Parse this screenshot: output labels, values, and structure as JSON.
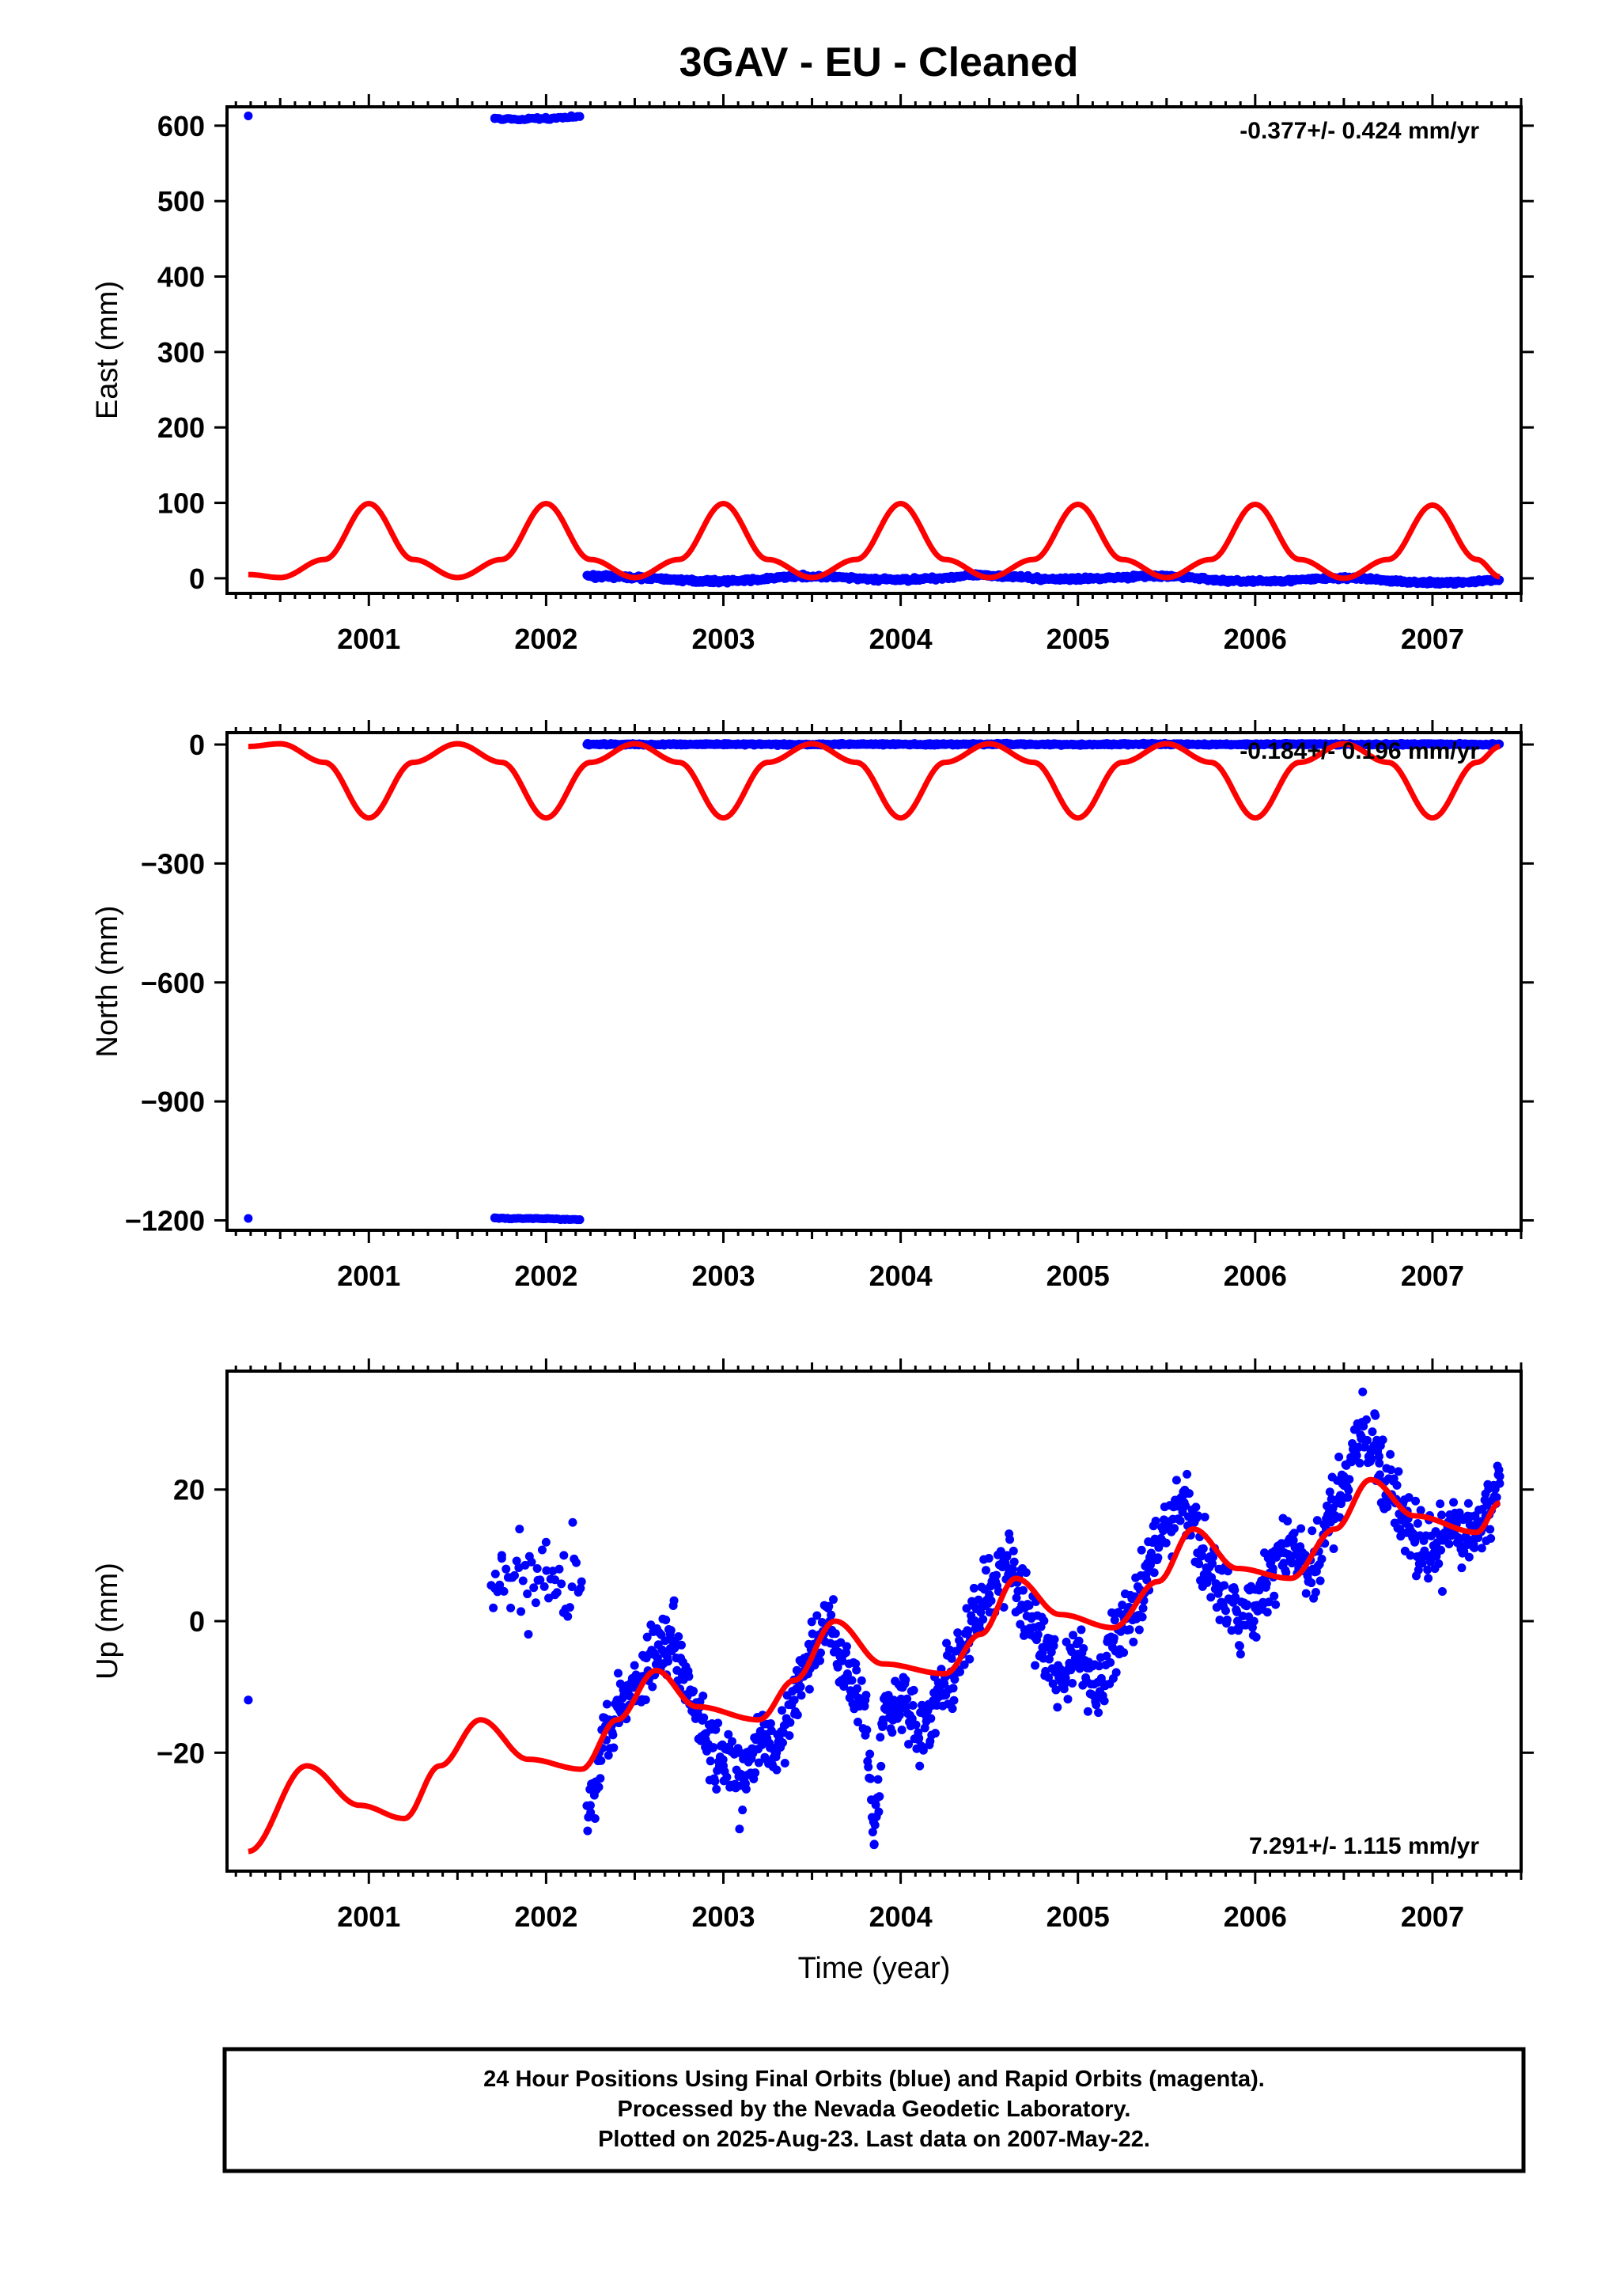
{
  "title": "3GAV  - EU - Cleaned",
  "footer": {
    "line1": "24 Hour Positions Using Final Orbits (blue) and Rapid Orbits (magenta).",
    "line2": "Processed by the Nevada Geodetic Laboratory.",
    "line3": "Plotted on 2025-Aug-23. Last data on 2007-May-22."
  },
  "colors": {
    "data": "#0000ff",
    "model": "#ff0000",
    "frame": "#000000"
  },
  "chart_data": [
    {
      "type": "scatter",
      "panel": "east",
      "ylabel": "East (mm)",
      "xlabel": "",
      "xlim": [
        2000.2,
        2007.5
      ],
      "ylim": [
        -20,
        625
      ],
      "yticks": [
        0,
        100,
        200,
        300,
        400,
        500,
        600
      ],
      "xticks": [
        2001,
        2002,
        2003,
        2004,
        2005,
        2006,
        2007
      ],
      "rate_label": "-0.377+/- 0.424 mm/yr",
      "rate_position": "top-right",
      "series": [
        {
          "values": [
            [
              2000.32,
              613
            ],
            [
              2001.71,
              610
            ],
            [
              2001.75,
              608
            ],
            [
              2001.8,
              609
            ],
            [
              2001.85,
              608
            ],
            [
              2001.9,
              609
            ],
            [
              2001.95,
              610
            ],
            [
              2002.0,
              609
            ],
            [
              2002.05,
              610
            ],
            [
              2002.1,
              611
            ],
            [
              2002.15,
              611
            ],
            [
              2002.19,
              612
            ]
          ]
        },
        {
          "values": [
            [
              2002.23,
              3
            ],
            [
              2002.4,
              2
            ],
            [
              2002.6,
              0
            ],
            [
              2002.8,
              -3
            ],
            [
              2003.0,
              -4
            ],
            [
              2003.2,
              -2
            ],
            [
              2003.4,
              3
            ],
            [
              2003.6,
              2
            ],
            [
              2003.8,
              -1
            ],
            [
              2004.0,
              -2
            ],
            [
              2004.2,
              0
            ],
            [
              2004.4,
              4
            ],
            [
              2004.6,
              3
            ],
            [
              2004.8,
              -1
            ],
            [
              2005.0,
              -1
            ],
            [
              2005.2,
              1
            ],
            [
              2005.4,
              3
            ],
            [
              2005.6,
              2
            ],
            [
              2005.8,
              -3
            ],
            [
              2006.0,
              -4
            ],
            [
              2006.2,
              -3
            ],
            [
              2006.4,
              0
            ],
            [
              2006.6,
              0
            ],
            [
              2006.8,
              -4
            ],
            [
              2007.0,
              -6
            ],
            [
              2007.2,
              -5
            ],
            [
              2007.38,
              -2
            ]
          ]
        },
        {
          "values": [
            [
              2000.32,
              5
            ],
            [
              2000.5,
              1
            ],
            [
              2000.75,
              25
            ],
            [
              2001.0,
              99
            ],
            [
              2001.25,
              25
            ],
            [
              2001.5,
              1
            ],
            [
              2001.75,
              25
            ],
            [
              2002.0,
              99
            ],
            [
              2002.25,
              25
            ],
            [
              2002.5,
              1
            ],
            [
              2002.75,
              25
            ],
            [
              2003.0,
              99
            ],
            [
              2003.25,
              25
            ],
            [
              2003.5,
              1
            ],
            [
              2003.75,
              25
            ],
            [
              2004.0,
              99
            ],
            [
              2004.25,
              25
            ],
            [
              2004.5,
              1
            ],
            [
              2004.75,
              25
            ],
            [
              2005.0,
              98
            ],
            [
              2005.25,
              25
            ],
            [
              2005.5,
              1
            ],
            [
              2005.75,
              25
            ],
            [
              2006.0,
              98
            ],
            [
              2006.25,
              25
            ],
            [
              2006.5,
              0
            ],
            [
              2006.75,
              25
            ],
            [
              2007.0,
              97
            ],
            [
              2007.25,
              25
            ],
            [
              2007.38,
              2
            ]
          ]
        }
      ]
    },
    {
      "type": "scatter",
      "panel": "north",
      "ylabel": "North (mm)",
      "xlabel": "",
      "xlim": [
        2000.2,
        2007.5
      ],
      "ylim": [
        -1225,
        30
      ],
      "yticks": [
        0,
        -300,
        -600,
        -900,
        -1200
      ],
      "ytick_labels": [
        "0",
        "−300",
        "−600",
        "−900",
        "−1200"
      ],
      "xticks": [
        2001,
        2002,
        2003,
        2004,
        2005,
        2006,
        2007
      ],
      "rate_label": "-0.184+/- 0.196 mm/yr",
      "rate_position": "top-right",
      "series": [
        {
          "values": [
            [
              2000.32,
              -1195
            ],
            [
              2001.71,
              -1194
            ],
            [
              2001.8,
              -1196
            ],
            [
              2001.9,
              -1195
            ],
            [
              2002.0,
              -1196
            ],
            [
              2002.1,
              -1197
            ],
            [
              2002.19,
              -1198
            ]
          ]
        },
        {
          "values": [
            [
              2002.23,
              1
            ],
            [
              2002.6,
              0
            ],
            [
              2003.0,
              1
            ],
            [
              2003.4,
              0
            ],
            [
              2003.8,
              1
            ],
            [
              2004.2,
              0
            ],
            [
              2004.6,
              1
            ],
            [
              2005.0,
              0
            ],
            [
              2005.4,
              1
            ],
            [
              2005.8,
              0
            ],
            [
              2006.2,
              1
            ],
            [
              2006.6,
              0
            ],
            [
              2007.0,
              1
            ],
            [
              2007.38,
              0
            ]
          ]
        },
        {
          "values": [
            [
              2000.32,
              -5
            ],
            [
              2000.5,
              2
            ],
            [
              2000.75,
              -45
            ],
            [
              2001.0,
              -185
            ],
            [
              2001.25,
              -45
            ],
            [
              2001.5,
              2
            ],
            [
              2001.75,
              -45
            ],
            [
              2002.0,
              -185
            ],
            [
              2002.25,
              -45
            ],
            [
              2002.5,
              2
            ],
            [
              2002.75,
              -45
            ],
            [
              2003.0,
              -185
            ],
            [
              2003.25,
              -45
            ],
            [
              2003.5,
              2
            ],
            [
              2003.75,
              -45
            ],
            [
              2004.0,
              -185
            ],
            [
              2004.25,
              -45
            ],
            [
              2004.5,
              2
            ],
            [
              2004.75,
              -45
            ],
            [
              2005.0,
              -185
            ],
            [
              2005.25,
              -45
            ],
            [
              2005.5,
              2
            ],
            [
              2005.75,
              -45
            ],
            [
              2006.0,
              -185
            ],
            [
              2006.25,
              -45
            ],
            [
              2006.5,
              2
            ],
            [
              2006.75,
              -45
            ],
            [
              2007.0,
              -185
            ],
            [
              2007.25,
              -45
            ],
            [
              2007.38,
              -5
            ]
          ]
        }
      ]
    },
    {
      "type": "scatter",
      "panel": "up",
      "ylabel": "Up (mm)",
      "xlabel": "Time (year)",
      "xlim": [
        2000.2,
        2007.5
      ],
      "ylim": [
        -38,
        38
      ],
      "yticks": [
        -20,
        0,
        20
      ],
      "ytick_labels": [
        "−20",
        "0",
        "20"
      ],
      "xticks": [
        2001,
        2002,
        2003,
        2004,
        2005,
        2006,
        2007
      ],
      "rate_label": "7.291+/- 1.115 mm/yr",
      "rate_position": "bottom-right",
      "series": [
        {
          "values": [
            [
              2000.32,
              -12
            ],
            [
              2001.71,
              5
            ],
            [
              2001.75,
              10
            ],
            [
              2001.8,
              2
            ],
            [
              2001.85,
              14
            ],
            [
              2001.9,
              -2
            ],
            [
              2001.95,
              8
            ],
            [
              2002.0,
              12
            ],
            [
              2002.05,
              4
            ],
            [
              2002.1,
              10
            ],
            [
              2002.15,
              15
            ],
            [
              2002.2,
              6
            ],
            [
              2002.25,
              -28
            ],
            [
              2002.3,
              -20
            ],
            [
              2002.4,
              -12
            ],
            [
              2002.5,
              -10
            ],
            [
              2002.6,
              -5
            ],
            [
              2002.7,
              -2
            ],
            [
              2002.8,
              -8
            ],
            [
              2002.9,
              -18
            ],
            [
              2003.0,
              -22
            ],
            [
              2003.1,
              -25
            ],
            [
              2003.2,
              -18
            ],
            [
              2003.3,
              -20
            ],
            [
              2003.4,
              -12
            ],
            [
              2003.5,
              -5
            ],
            [
              2003.6,
              0
            ],
            [
              2003.7,
              -8
            ],
            [
              2003.8,
              -12
            ],
            [
              2003.85,
              -34
            ],
            [
              2003.9,
              -15
            ],
            [
              2004.0,
              -10
            ],
            [
              2004.1,
              -18
            ],
            [
              2004.2,
              -12
            ],
            [
              2004.3,
              -8
            ],
            [
              2004.4,
              0
            ],
            [
              2004.5,
              4
            ],
            [
              2004.6,
              10
            ],
            [
              2004.7,
              2
            ],
            [
              2004.8,
              -4
            ],
            [
              2004.9,
              -8
            ],
            [
              2005.0,
              -5
            ],
            [
              2005.1,
              -12
            ],
            [
              2005.2,
              -3
            ],
            [
              2005.3,
              2
            ],
            [
              2005.4,
              8
            ],
            [
              2005.5,
              15
            ],
            [
              2005.6,
              18
            ],
            [
              2005.7,
              10
            ],
            [
              2005.8,
              5
            ],
            [
              2005.9,
              0
            ],
            [
              2006.0,
              2
            ],
            [
              2006.1,
              8
            ],
            [
              2006.2,
              12
            ],
            [
              2006.3,
              6
            ],
            [
              2006.4,
              14
            ],
            [
              2006.5,
              22
            ],
            [
              2006.6,
              28
            ],
            [
              2006.7,
              24
            ],
            [
              2006.8,
              18
            ],
            [
              2006.9,
              12
            ],
            [
              2007.0,
              10
            ],
            [
              2007.1,
              14
            ],
            [
              2007.2,
              12
            ],
            [
              2007.3,
              16
            ],
            [
              2007.38,
              22
            ]
          ]
        },
        {
          "values": [
            [
              2000.32,
              -35
            ],
            [
              2000.65,
              -22
            ],
            [
              2000.95,
              -28
            ],
            [
              2001.2,
              -30
            ],
            [
              2001.4,
              -22
            ],
            [
              2001.63,
              -15
            ],
            [
              2001.9,
              -21
            ],
            [
              2002.2,
              -22.5
            ],
            [
              2002.4,
              -15
            ],
            [
              2002.62,
              -7.5
            ],
            [
              2002.85,
              -13
            ],
            [
              2003.2,
              -15
            ],
            [
              2003.4,
              -9
            ],
            [
              2003.63,
              0
            ],
            [
              2003.9,
              -6.5
            ],
            [
              2004.25,
              -8
            ],
            [
              2004.45,
              -2
            ],
            [
              2004.65,
              6.5
            ],
            [
              2004.9,
              1
            ],
            [
              2005.2,
              -1
            ],
            [
              2005.45,
              6
            ],
            [
              2005.65,
              14
            ],
            [
              2005.9,
              8
            ],
            [
              2006.2,
              6.5
            ],
            [
              2006.45,
              14
            ],
            [
              2006.65,
              21.5
            ],
            [
              2006.9,
              16
            ],
            [
              2007.25,
              13.5
            ],
            [
              2007.38,
              18
            ]
          ]
        }
      ]
    }
  ]
}
